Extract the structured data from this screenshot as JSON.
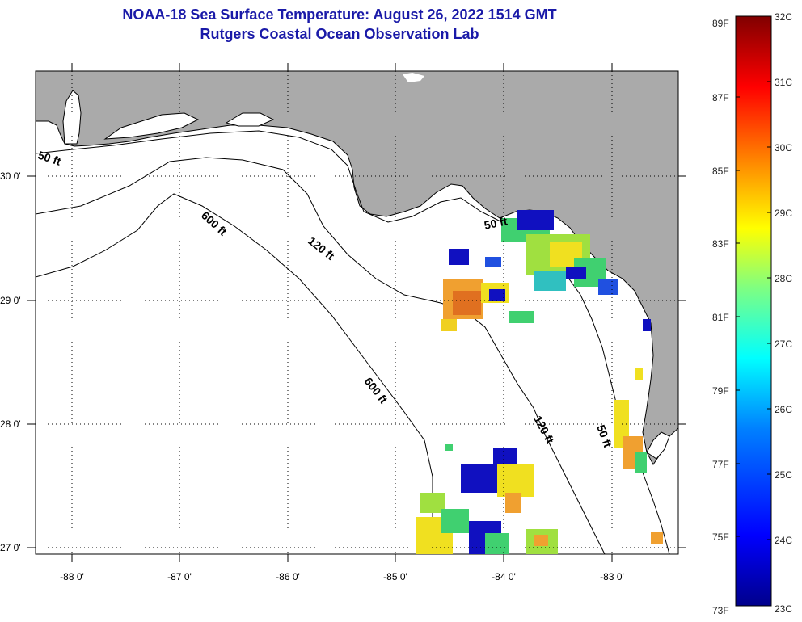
{
  "title": {
    "line1": "NOAA-18 Sea Surface Temperature:  August 26, 2022 1514 GMT",
    "line2": "Rutgers Coastal Ocean Observation Lab"
  },
  "axes": {
    "lat_labels": [
      "30 0'",
      "29 0'",
      "28 0'",
      "27 0'"
    ],
    "lon_labels": [
      "-88 0'",
      "-87 0'",
      "-86 0'",
      "-85 0'",
      "-84 0'",
      "-83 0'"
    ]
  },
  "contour_labels": [
    "50 ft",
    "50 ft",
    "50 ft",
    "120 ft",
    "120 ft",
    "600 ft",
    "600 ft"
  ],
  "colorbar": {
    "fahrenheit": [
      "89F",
      "87F",
      "85F",
      "83F",
      "81F",
      "79F",
      "77F",
      "75F",
      "73F"
    ],
    "celsius": [
      "32C",
      "31C",
      "30C",
      "29C",
      "28C",
      "27C",
      "26C",
      "25C",
      "24C",
      "23C"
    ],
    "colors": [
      "#00008b",
      "#0000ff",
      "#0080ff",
      "#00ffff",
      "#80ff80",
      "#ffff00",
      "#ff8000",
      "#ff0000",
      "#800000"
    ]
  },
  "colors": {
    "land": "#aaaaaa",
    "water": "#ffffff",
    "title": "#1a1aa8",
    "sst_cold": "#1010c0",
    "sst_mid": "#40d070",
    "sst_warm": "#f0e020",
    "sst_hot": "#f09020"
  }
}
